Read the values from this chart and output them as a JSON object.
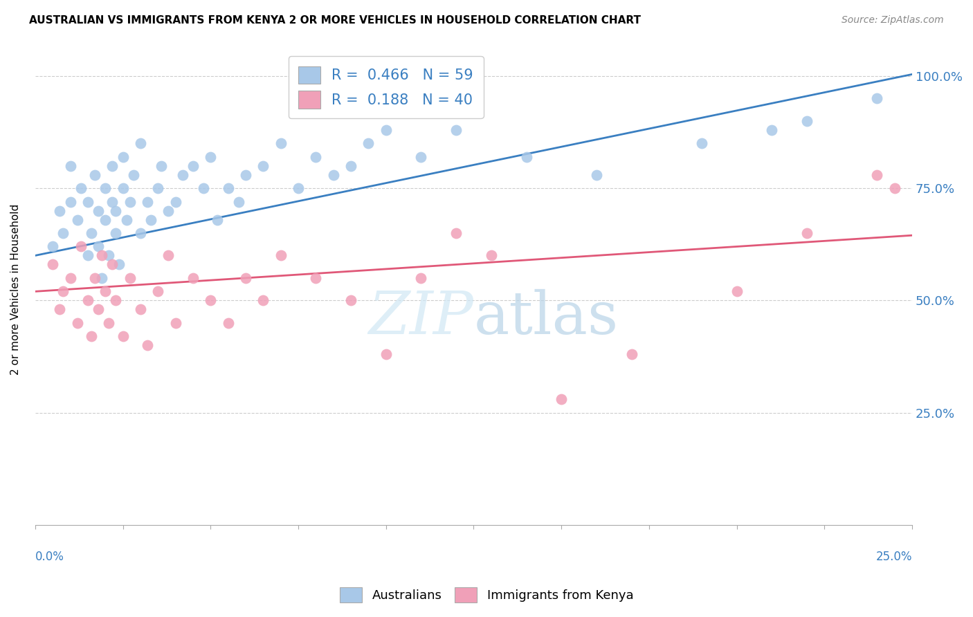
{
  "title": "AUSTRALIAN VS IMMIGRANTS FROM KENYA 2 OR MORE VEHICLES IN HOUSEHOLD CORRELATION CHART",
  "source": "Source: ZipAtlas.com",
  "ylabel": "2 or more Vehicles in Household",
  "ytick_labels": [
    "25.0%",
    "50.0%",
    "75.0%",
    "100.0%"
  ],
  "legend_label1": "Australians",
  "legend_label2": "Immigrants from Kenya",
  "r1": "0.466",
  "n1": "59",
  "r2": "0.188",
  "n2": "40",
  "color_aus": "#a8c8e8",
  "color_ken": "#f0a0b8",
  "line_color_aus": "#3a7fc1",
  "line_color_ken": "#e05878",
  "xmin": 0.0,
  "xmax": 0.25,
  "ymin": 0.0,
  "ymax": 1.05,
  "aus_x": [
    0.005,
    0.007,
    0.008,
    0.01,
    0.01,
    0.012,
    0.013,
    0.015,
    0.015,
    0.016,
    0.017,
    0.018,
    0.018,
    0.019,
    0.02,
    0.02,
    0.021,
    0.022,
    0.022,
    0.023,
    0.023,
    0.024,
    0.025,
    0.025,
    0.026,
    0.027,
    0.028,
    0.03,
    0.03,
    0.032,
    0.033,
    0.035,
    0.036,
    0.038,
    0.04,
    0.042,
    0.045,
    0.048,
    0.05,
    0.052,
    0.055,
    0.058,
    0.06,
    0.065,
    0.07,
    0.075,
    0.08,
    0.085,
    0.09,
    0.095,
    0.1,
    0.11,
    0.12,
    0.14,
    0.16,
    0.19,
    0.21,
    0.22,
    0.24
  ],
  "aus_y": [
    0.62,
    0.7,
    0.65,
    0.72,
    0.8,
    0.68,
    0.75,
    0.6,
    0.72,
    0.65,
    0.78,
    0.62,
    0.7,
    0.55,
    0.68,
    0.75,
    0.6,
    0.72,
    0.8,
    0.65,
    0.7,
    0.58,
    0.75,
    0.82,
    0.68,
    0.72,
    0.78,
    0.85,
    0.65,
    0.72,
    0.68,
    0.75,
    0.8,
    0.7,
    0.72,
    0.78,
    0.8,
    0.75,
    0.82,
    0.68,
    0.75,
    0.72,
    0.78,
    0.8,
    0.85,
    0.75,
    0.82,
    0.78,
    0.8,
    0.85,
    0.88,
    0.82,
    0.88,
    0.82,
    0.78,
    0.85,
    0.88,
    0.9,
    0.95
  ],
  "ken_x": [
    0.005,
    0.007,
    0.008,
    0.01,
    0.012,
    0.013,
    0.015,
    0.016,
    0.017,
    0.018,
    0.019,
    0.02,
    0.021,
    0.022,
    0.023,
    0.025,
    0.027,
    0.03,
    0.032,
    0.035,
    0.038,
    0.04,
    0.045,
    0.05,
    0.055,
    0.06,
    0.065,
    0.07,
    0.08,
    0.09,
    0.1,
    0.11,
    0.12,
    0.13,
    0.15,
    0.17,
    0.2,
    0.22,
    0.24,
    0.245
  ],
  "ken_y": [
    0.58,
    0.48,
    0.52,
    0.55,
    0.45,
    0.62,
    0.5,
    0.42,
    0.55,
    0.48,
    0.6,
    0.52,
    0.45,
    0.58,
    0.5,
    0.42,
    0.55,
    0.48,
    0.4,
    0.52,
    0.6,
    0.45,
    0.55,
    0.5,
    0.45,
    0.55,
    0.5,
    0.6,
    0.55,
    0.5,
    0.38,
    0.55,
    0.65,
    0.6,
    0.28,
    0.38,
    0.52,
    0.65,
    0.78,
    0.75
  ],
  "aus_trend": [
    0.6,
    1.02
  ],
  "ken_trend": [
    0.52,
    0.65
  ]
}
